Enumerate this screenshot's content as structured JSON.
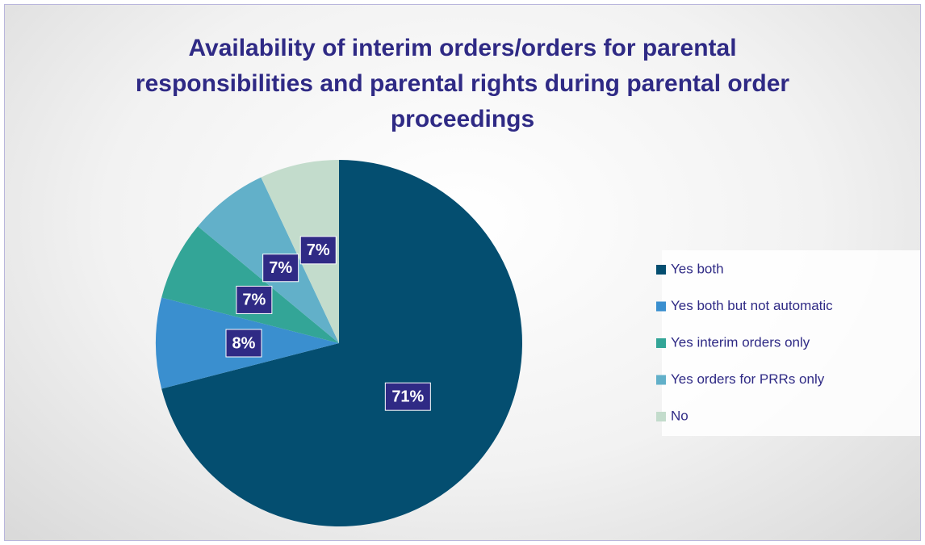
{
  "chart_data": {
    "type": "pie",
    "title": "Availability of interim orders/orders for parental responsibilities and parental rights during parental order proceedings",
    "categories": [
      "Yes both",
      "Yes both but not automatic",
      "Yes interim orders only",
      "Yes orders for PRRs only",
      "No"
    ],
    "values": [
      71,
      8,
      7,
      7,
      7
    ],
    "value_labels": [
      "71%",
      "8%",
      "7%",
      "7%",
      "7%"
    ],
    "colors": [
      "#044e70",
      "#3a8fcf",
      "#33a597",
      "#62b0c9",
      "#c3dccc"
    ],
    "legend": "right"
  }
}
